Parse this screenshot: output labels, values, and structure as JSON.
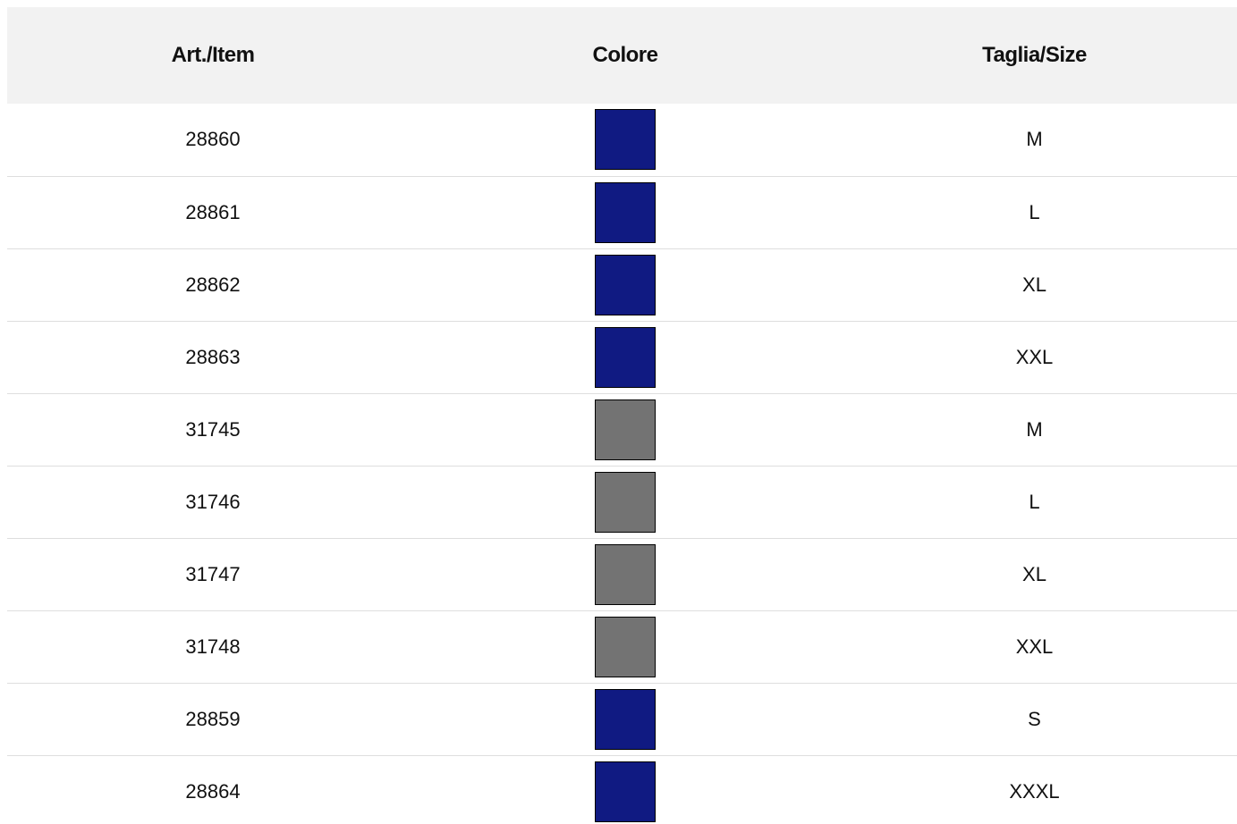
{
  "table": {
    "headers": {
      "item": "Art./Item",
      "color": "Colore",
      "size": "Taglia/Size"
    },
    "rows": [
      {
        "item": "28860",
        "color_hex": "#101a82",
        "size": "M"
      },
      {
        "item": "28861",
        "color_hex": "#101a82",
        "size": "L"
      },
      {
        "item": "28862",
        "color_hex": "#101a82",
        "size": "XL"
      },
      {
        "item": "28863",
        "color_hex": "#101a82",
        "size": "XXL"
      },
      {
        "item": "31745",
        "color_hex": "#737373",
        "size": "M"
      },
      {
        "item": "31746",
        "color_hex": "#737373",
        "size": "L"
      },
      {
        "item": "31747",
        "color_hex": "#737373",
        "size": "XL"
      },
      {
        "item": "31748",
        "color_hex": "#737373",
        "size": "XXL"
      },
      {
        "item": "28859",
        "color_hex": "#101a82",
        "size": "S"
      },
      {
        "item": "28864",
        "color_hex": "#101a82",
        "size": "XXXL"
      }
    ]
  }
}
